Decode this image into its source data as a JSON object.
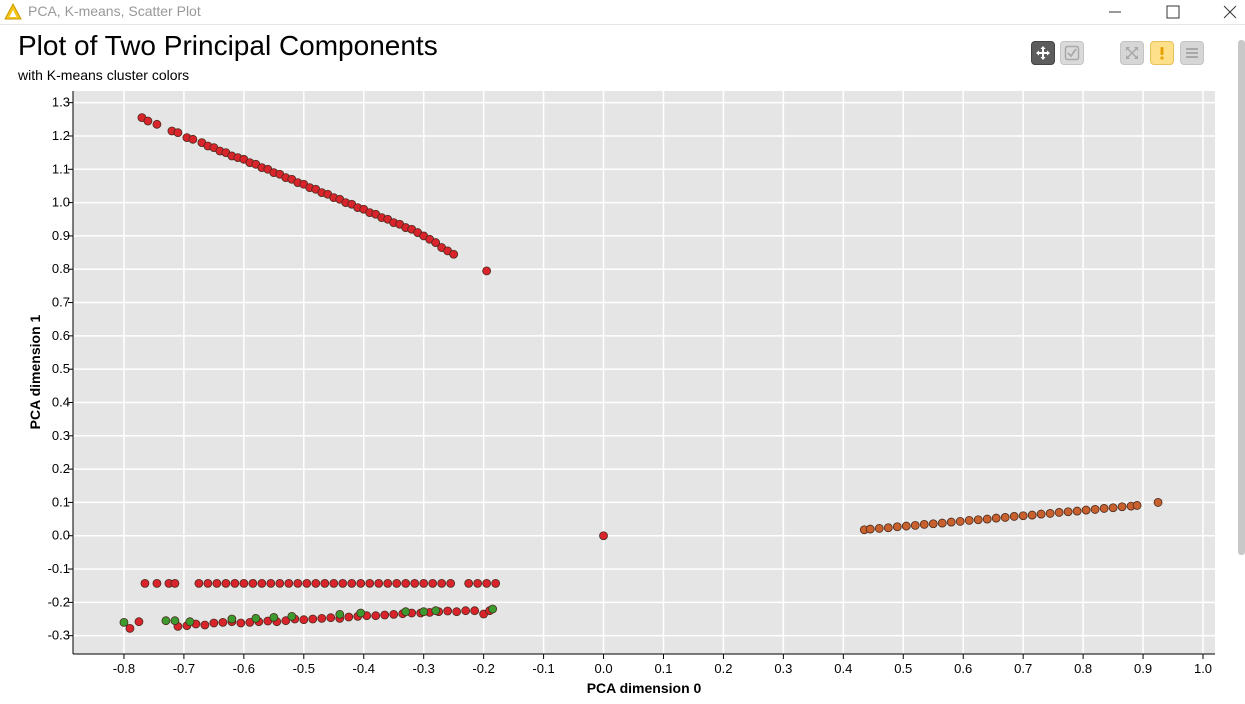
{
  "window": {
    "title": "PCA, K-means, Scatter Plot",
    "icon": "warning-triangle-icon"
  },
  "toolbar": {
    "buttons": [
      "pan-move-icon",
      "selection-check-icon",
      "zoom-fit-icon",
      "warning-exclamation-icon",
      "menu-hamburger-icon"
    ]
  },
  "colors": {
    "plot_background": "#e5e5e5",
    "grid": "#ffffff",
    "cluster_red": "#d9242b",
    "cluster_green": "#3c9a2e",
    "cluster_orange": "#c8612d",
    "point_stroke": "#4a2a1e"
  },
  "chart_data": {
    "type": "scatter",
    "title": "Plot of Two Principal Components",
    "subtitle": "with K-means cluster colors",
    "xlabel": "PCA dimension 0",
    "ylabel": "PCA dimension 1",
    "xlim": [
      -0.885,
      1.02
    ],
    "ylim": [
      -0.355,
      1.335
    ],
    "xticks": [
      "-0.8",
      "-0.7",
      "-0.6",
      "-0.5",
      "-0.4",
      "-0.3",
      "-0.2",
      "-0.1",
      "0.0",
      "0.1",
      "0.2",
      "0.3",
      "0.4",
      "0.5",
      "0.6",
      "0.7",
      "0.8",
      "0.9",
      "1.0"
    ],
    "yticks": [
      "1.3",
      "1.2",
      "1.1",
      "1.0",
      "0.9",
      "0.8",
      "0.7",
      "0.6",
      "0.5",
      "0.4",
      "0.3",
      "0.2",
      "0.1",
      "0.0",
      "-0.1",
      "-0.2",
      "-0.3"
    ],
    "grid": true,
    "legend": "none",
    "series": [
      {
        "color": "#d9242b",
        "points": [
          [
            -0.77,
            1.255
          ],
          [
            -0.76,
            1.245
          ],
          [
            -0.745,
            1.235
          ],
          [
            -0.72,
            1.215
          ],
          [
            -0.71,
            1.21
          ],
          [
            -0.695,
            1.195
          ],
          [
            -0.685,
            1.19
          ],
          [
            -0.67,
            1.18
          ],
          [
            -0.66,
            1.17
          ],
          [
            -0.65,
            1.165
          ],
          [
            -0.64,
            1.155
          ],
          [
            -0.63,
            1.15
          ],
          [
            -0.62,
            1.14
          ],
          [
            -0.61,
            1.135
          ],
          [
            -0.6,
            1.13
          ],
          [
            -0.59,
            1.12
          ],
          [
            -0.58,
            1.115
          ],
          [
            -0.57,
            1.105
          ],
          [
            -0.56,
            1.1
          ],
          [
            -0.55,
            1.09
          ],
          [
            -0.54,
            1.085
          ],
          [
            -0.53,
            1.075
          ],
          [
            -0.52,
            1.07
          ],
          [
            -0.51,
            1.06
          ],
          [
            -0.5,
            1.055
          ],
          [
            -0.49,
            1.045
          ],
          [
            -0.48,
            1.04
          ],
          [
            -0.47,
            1.03
          ],
          [
            -0.46,
            1.025
          ],
          [
            -0.45,
            1.015
          ],
          [
            -0.44,
            1.01
          ],
          [
            -0.43,
            1.0
          ],
          [
            -0.42,
            0.995
          ],
          [
            -0.41,
            0.985
          ],
          [
            -0.4,
            0.98
          ],
          [
            -0.39,
            0.97
          ],
          [
            -0.38,
            0.965
          ],
          [
            -0.37,
            0.955
          ],
          [
            -0.36,
            0.95
          ],
          [
            -0.35,
            0.94
          ],
          [
            -0.34,
            0.935
          ],
          [
            -0.33,
            0.925
          ],
          [
            -0.32,
            0.92
          ],
          [
            -0.31,
            0.91
          ],
          [
            -0.3,
            0.9
          ],
          [
            -0.29,
            0.89
          ],
          [
            -0.28,
            0.88
          ],
          [
            -0.27,
            0.865
          ],
          [
            -0.26,
            0.855
          ],
          [
            -0.25,
            0.845
          ],
          [
            -0.195,
            0.795
          ],
          [
            0.0,
            0.0
          ],
          [
            -0.765,
            -0.143
          ],
          [
            -0.745,
            -0.143
          ],
          [
            -0.725,
            -0.143
          ],
          [
            -0.715,
            -0.143
          ],
          [
            -0.675,
            -0.143
          ],
          [
            -0.66,
            -0.143
          ],
          [
            -0.645,
            -0.143
          ],
          [
            -0.63,
            -0.143
          ],
          [
            -0.615,
            -0.143
          ],
          [
            -0.6,
            -0.143
          ],
          [
            -0.585,
            -0.143
          ],
          [
            -0.57,
            -0.143
          ],
          [
            -0.555,
            -0.143
          ],
          [
            -0.54,
            -0.143
          ],
          [
            -0.525,
            -0.143
          ],
          [
            -0.51,
            -0.143
          ],
          [
            -0.495,
            -0.143
          ],
          [
            -0.48,
            -0.143
          ],
          [
            -0.465,
            -0.143
          ],
          [
            -0.45,
            -0.143
          ],
          [
            -0.435,
            -0.143
          ],
          [
            -0.42,
            -0.143
          ],
          [
            -0.405,
            -0.143
          ],
          [
            -0.39,
            -0.143
          ],
          [
            -0.375,
            -0.143
          ],
          [
            -0.36,
            -0.143
          ],
          [
            -0.345,
            -0.143
          ],
          [
            -0.33,
            -0.143
          ],
          [
            -0.315,
            -0.143
          ],
          [
            -0.3,
            -0.143
          ],
          [
            -0.285,
            -0.143
          ],
          [
            -0.27,
            -0.143
          ],
          [
            -0.255,
            -0.143
          ],
          [
            -0.225,
            -0.143
          ],
          [
            -0.21,
            -0.143
          ],
          [
            -0.195,
            -0.143
          ],
          [
            -0.18,
            -0.143
          ],
          [
            -0.79,
            -0.278
          ],
          [
            -0.775,
            -0.258
          ],
          [
            -0.71,
            -0.272
          ],
          [
            -0.695,
            -0.27
          ],
          [
            -0.68,
            -0.265
          ],
          [
            -0.665,
            -0.268
          ],
          [
            -0.65,
            -0.262
          ],
          [
            -0.635,
            -0.26
          ],
          [
            -0.62,
            -0.258
          ],
          [
            -0.605,
            -0.262
          ],
          [
            -0.59,
            -0.26
          ],
          [
            -0.575,
            -0.258
          ],
          [
            -0.56,
            -0.256
          ],
          [
            -0.545,
            -0.258
          ],
          [
            -0.53,
            -0.255
          ],
          [
            -0.515,
            -0.25
          ],
          [
            -0.5,
            -0.252
          ],
          [
            -0.485,
            -0.25
          ],
          [
            -0.47,
            -0.248
          ],
          [
            -0.455,
            -0.246
          ],
          [
            -0.44,
            -0.248
          ],
          [
            -0.425,
            -0.244
          ],
          [
            -0.41,
            -0.242
          ],
          [
            -0.395,
            -0.24
          ],
          [
            -0.38,
            -0.24
          ],
          [
            -0.365,
            -0.238
          ],
          [
            -0.35,
            -0.236
          ],
          [
            -0.335,
            -0.234
          ],
          [
            -0.32,
            -0.232
          ],
          [
            -0.305,
            -0.232
          ],
          [
            -0.29,
            -0.23
          ],
          [
            -0.275,
            -0.228
          ],
          [
            -0.26,
            -0.226
          ],
          [
            -0.245,
            -0.228
          ],
          [
            -0.23,
            -0.225
          ],
          [
            -0.215,
            -0.225
          ],
          [
            -0.2,
            -0.235
          ],
          [
            -0.19,
            -0.225
          ]
        ]
      },
      {
        "color": "#3c9a2e",
        "points": [
          [
            -0.8,
            -0.26
          ],
          [
            -0.73,
            -0.255
          ],
          [
            -0.715,
            -0.255
          ],
          [
            -0.69,
            -0.258
          ],
          [
            -0.62,
            -0.25
          ],
          [
            -0.58,
            -0.248
          ],
          [
            -0.55,
            -0.245
          ],
          [
            -0.52,
            -0.242
          ],
          [
            -0.44,
            -0.236
          ],
          [
            -0.405,
            -0.232
          ],
          [
            -0.33,
            -0.228
          ],
          [
            -0.3,
            -0.228
          ],
          [
            -0.28,
            -0.225
          ],
          [
            -0.185,
            -0.22
          ]
        ]
      },
      {
        "color": "#c8612d",
        "points": [
          [
            0.435,
            0.018
          ],
          [
            0.445,
            0.02
          ],
          [
            0.46,
            0.022
          ],
          [
            0.475,
            0.024
          ],
          [
            0.49,
            0.027
          ],
          [
            0.505,
            0.029
          ],
          [
            0.52,
            0.031
          ],
          [
            0.535,
            0.034
          ],
          [
            0.55,
            0.036
          ],
          [
            0.565,
            0.038
          ],
          [
            0.58,
            0.041
          ],
          [
            0.595,
            0.043
          ],
          [
            0.61,
            0.046
          ],
          [
            0.625,
            0.048
          ],
          [
            0.64,
            0.05
          ],
          [
            0.655,
            0.053
          ],
          [
            0.67,
            0.055
          ],
          [
            0.685,
            0.058
          ],
          [
            0.7,
            0.06
          ],
          [
            0.715,
            0.062
          ],
          [
            0.73,
            0.065
          ],
          [
            0.745,
            0.067
          ],
          [
            0.76,
            0.07
          ],
          [
            0.775,
            0.072
          ],
          [
            0.79,
            0.074
          ],
          [
            0.805,
            0.077
          ],
          [
            0.82,
            0.079
          ],
          [
            0.835,
            0.082
          ],
          [
            0.85,
            0.084
          ],
          [
            0.865,
            0.087
          ],
          [
            0.88,
            0.089
          ],
          [
            0.89,
            0.091
          ],
          [
            0.925,
            0.1
          ]
        ]
      }
    ]
  }
}
